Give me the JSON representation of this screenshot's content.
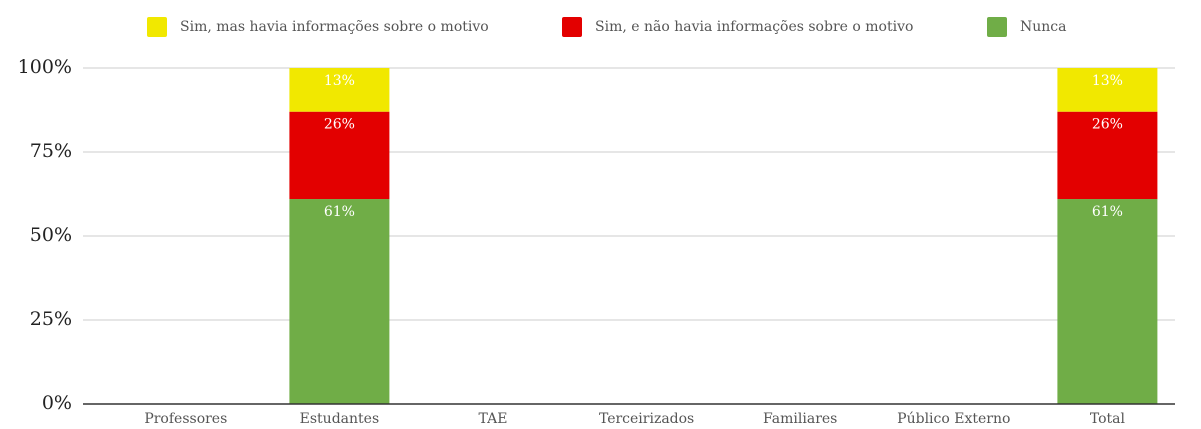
{
  "chart_data": {
    "type": "stacked_bar",
    "categories": [
      "Professores",
      "Estudantes",
      "TAE",
      "Terceirizados",
      "Familiares",
      "Público Externo",
      "Total"
    ],
    "series": [
      {
        "name": "Sim, mas havia informações sobre o motivo",
        "color": "#f1e800",
        "values": [
          null,
          13,
          null,
          null,
          null,
          null,
          13
        ],
        "value_labels": [
          null,
          "13%",
          null,
          null,
          null,
          null,
          "13%"
        ]
      },
      {
        "name": "Sim, e não havia informações sobre o motivo",
        "color": "#e30000",
        "values": [
          null,
          26,
          null,
          null,
          null,
          null,
          26
        ],
        "value_labels": [
          null,
          "26%",
          null,
          null,
          null,
          null,
          "26%"
        ]
      },
      {
        "name": "Nunca",
        "color": "#70ad47",
        "values": [
          null,
          61,
          null,
          null,
          null,
          null,
          61
        ],
        "value_labels": [
          null,
          "61%",
          null,
          null,
          null,
          null,
          "61%"
        ]
      }
    ],
    "ylim": [
      0,
      100
    ],
    "yticks": [
      {
        "value": 0,
        "label": "0%"
      },
      {
        "value": 25,
        "label": "25%"
      },
      {
        "value": 50,
        "label": "50%"
      },
      {
        "value": 75,
        "label": "75%"
      },
      {
        "value": 100,
        "label": "100%"
      }
    ],
    "grid": true,
    "legend": "top"
  }
}
